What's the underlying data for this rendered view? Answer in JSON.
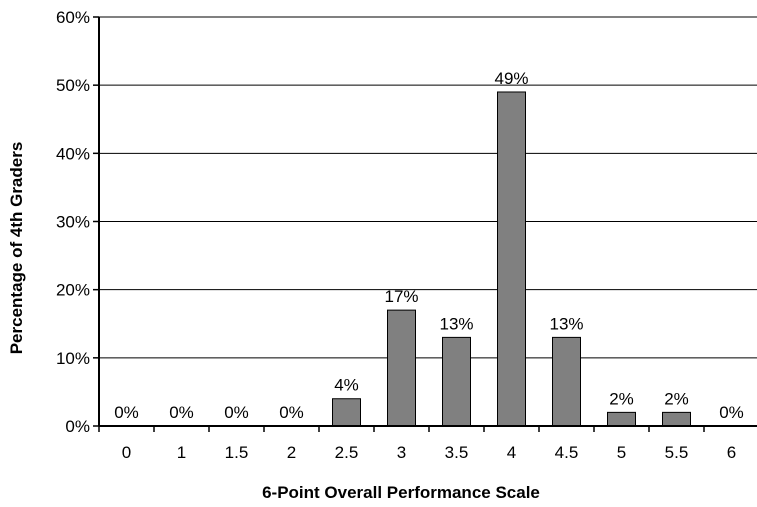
{
  "chart_data": {
    "type": "bar",
    "categories": [
      "0",
      "1",
      "1.5",
      "2",
      "2.5",
      "3",
      "3.5",
      "4",
      "4.5",
      "5",
      "5.5",
      "6"
    ],
    "values": [
      0,
      0,
      0,
      0,
      4,
      17,
      13,
      49,
      13,
      2,
      2,
      0
    ],
    "data_labels": [
      "0%",
      "0%",
      "0%",
      "0%",
      "4%",
      "17%",
      "13%",
      "49%",
      "13%",
      "2%",
      "2%",
      "0%"
    ],
    "y_ticks": [
      "0%",
      "10%",
      "20%",
      "30%",
      "40%",
      "50%",
      "60%"
    ],
    "title": "",
    "xlabel": "6-Point Overall Performance Scale",
    "ylabel": "Percentage of 4th Graders",
    "ylim": [
      0,
      60
    ],
    "y_tick_step": 10,
    "grid": true,
    "bar_color": "#808080",
    "bar_edge_color": "#000000",
    "legend": "none"
  }
}
